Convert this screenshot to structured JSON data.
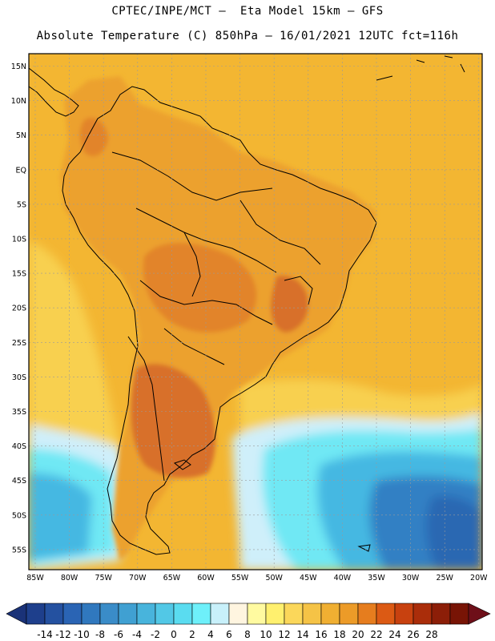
{
  "title_line1": "CPTEC/INPE/MCT –  Eta Model 15km – GFS",
  "title_line2": "Absolute Temperature (C) 850hPa – 16/01/2021 12UTC fct=116h",
  "lat_labels": [
    "15N",
    "10N",
    "5N",
    "EQ",
    "5S",
    "10S",
    "15S",
    "20S",
    "25S",
    "30S",
    "35S",
    "40S",
    "45S",
    "50S",
    "55S"
  ],
  "lon_labels": [
    "85W",
    "80W",
    "75W",
    "70W",
    "65W",
    "60W",
    "55W",
    "50W",
    "45W",
    "40W",
    "35W",
    "30W",
    "25W",
    "20W"
  ],
  "colorbar": {
    "ticks": [
      "-14",
      "-12",
      "-10",
      "-8",
      "-6",
      "-4",
      "-2",
      "0",
      "2",
      "4",
      "6",
      "8",
      "10",
      "12",
      "14",
      "16",
      "18",
      "20",
      "22",
      "24",
      "26",
      "28"
    ],
    "colors": [
      "#1e3f8c",
      "#2451a0",
      "#2a64b4",
      "#3078be",
      "#3a8cc8",
      "#40a0d2",
      "#48b4dc",
      "#52c8e6",
      "#5adcf0",
      "#6ef0fa",
      "#c8f0fa",
      "#fff5e0",
      "#fffaa0",
      "#fff06e",
      "#fbd75a",
      "#f5c346",
      "#f0af32",
      "#ec9b28",
      "#e67d1e",
      "#dc5a14",
      "#c8410f",
      "#aa2d0a",
      "#8c1e08",
      "#781405"
    ],
    "left_arrow_color": "#1a3278",
    "right_arrow_color": "#6e0f19"
  },
  "background_colors": {
    "ocean_warm": "#f3b632",
    "ocean_mild": "#f8d050",
    "land": "#eca12d",
    "land_hot": "#e2842a",
    "land_hotter": "#d8702a",
    "cold_light": "#cfeffa",
    "cold_cyan": "#6fe8f4",
    "cold_mid": "#45b8e2",
    "cold_deep": "#3380c4",
    "cold_deepest": "#2a68b2"
  }
}
